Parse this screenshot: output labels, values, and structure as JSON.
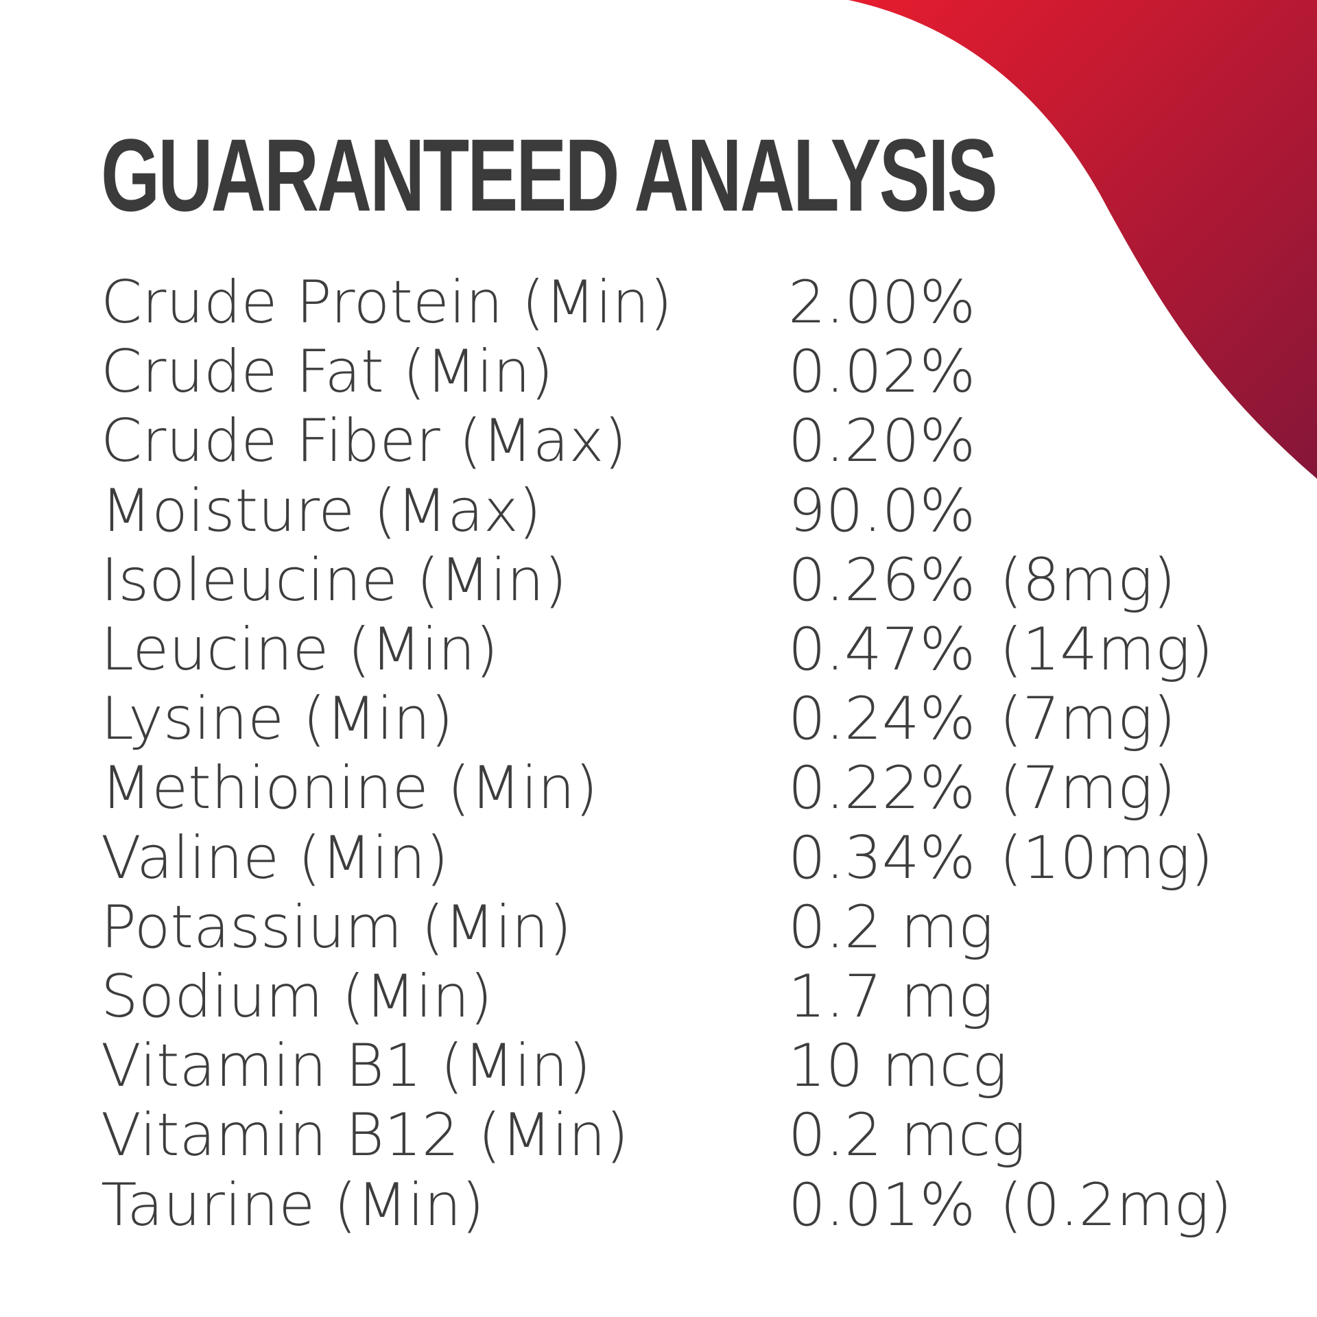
{
  "header": {
    "title": "GUARANTEED ANALYSIS"
  },
  "table": {
    "rows": [
      [
        "Crude Protein (Min)",
        "2.00%"
      ],
      [
        "Crude Fat (Min)",
        "0.02%"
      ],
      [
        "Crude Fiber (Max)",
        "0.20%"
      ],
      [
        "Moisture (Max)",
        "90.0%"
      ],
      [
        "Isoleucine (Min)",
        "0.26%",
        "(8mg)"
      ],
      [
        "Leucine (Min)",
        "0.47%",
        "(14mg)"
      ],
      [
        "Lysine (Min)",
        "0.24%",
        "(7mg)"
      ],
      [
        "Methionine (Min)",
        "0.22%",
        "(7mg)"
      ],
      [
        "Valine (Min)",
        "0.34%",
        "(10mg)"
      ],
      [
        "Potassium (Min)",
        "0.2 mg"
      ],
      [
        "Sodium (Min)",
        "1.7 mg"
      ],
      [
        "Vitamin B1 (Min)",
        "10 mcg"
      ],
      [
        "Vitamin B12 (Min)",
        "0.2 mcg"
      ],
      [
        "Taurine (Min)",
        "0.01%",
        "(0.2mg)"
      ]
    ]
  }
}
